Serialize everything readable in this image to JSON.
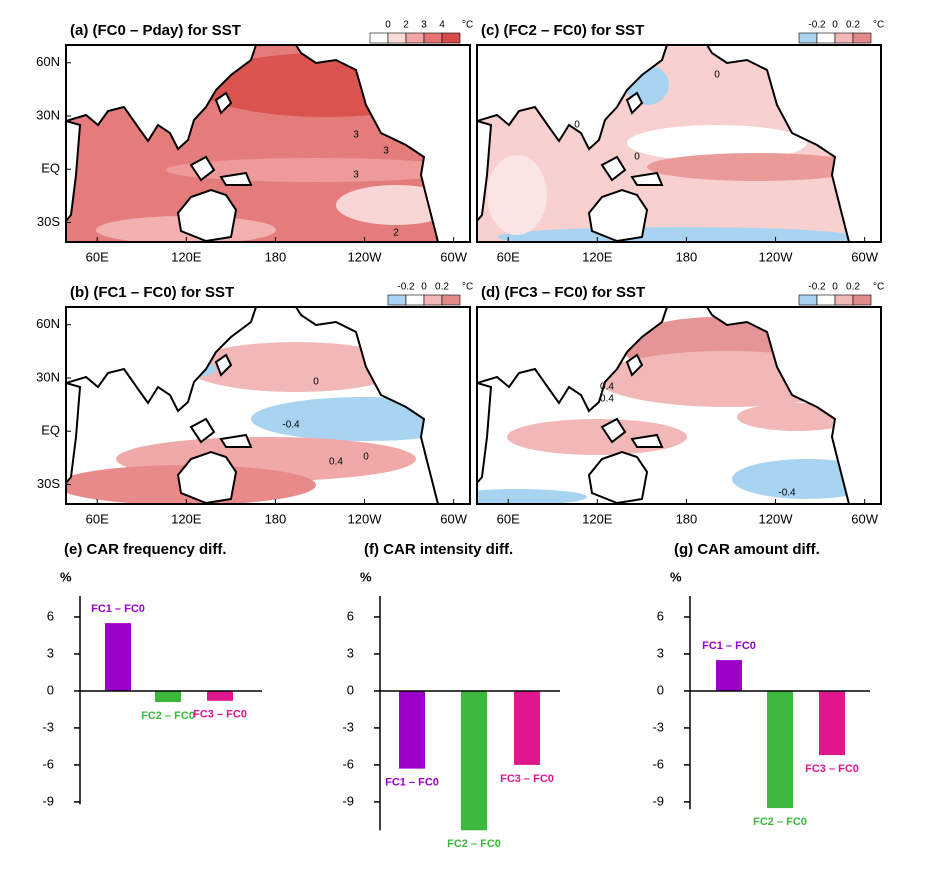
{
  "chart_data": [
    {
      "type": "map",
      "title": "(a) (FC0 – Pday) for SST",
      "xlim": [
        39,
        311
      ],
      "ylim": [
        -41,
        70
      ],
      "xticks": [
        {
          "value": 60,
          "label": "60E"
        },
        {
          "value": 120,
          "label": "120E"
        },
        180,
        {
          "value": 240,
          "label": "120W"
        },
        {
          "value": 300,
          "label": "60W"
        }
      ],
      "yticks": [
        {
          "value": 60,
          "label": "60N"
        },
        {
          "value": 30,
          "label": "30N"
        },
        {
          "value": 0,
          "label": "EQ"
        },
        {
          "value": -30,
          "label": "30S"
        }
      ],
      "colorbar": {
        "levels": [
          0,
          2,
          3,
          4
        ],
        "unit": "°C",
        "colors": [
          "#ffffff",
          "#fbdada",
          "#f2a6a6",
          "#e57373",
          "#d94a4a"
        ]
      },
      "contour_labels": [
        3,
        3,
        3,
        2
      ]
    },
    {
      "type": "map",
      "title": "(b) (FC1 – FC0) for SST",
      "xlim": [
        39,
        311
      ],
      "ylim": [
        -41,
        70
      ],
      "xticks": [
        {
          "value": 60,
          "label": "60E"
        },
        {
          "value": 120,
          "label": "120E"
        },
        180,
        {
          "value": 240,
          "label": "120W"
        },
        {
          "value": 300,
          "label": "60W"
        }
      ],
      "yticks": [
        {
          "value": 60,
          "label": "60N"
        },
        {
          "value": 30,
          "label": "30N"
        },
        {
          "value": 0,
          "label": "EQ"
        },
        {
          "value": -30,
          "label": "30S"
        }
      ],
      "colorbar": {
        "levels": [
          -0.2,
          0,
          0.2
        ],
        "unit": "°C",
        "colors": [
          "#a8d4f2",
          "#ffffff",
          "#f2b8b8",
          "#e28a8a"
        ]
      },
      "contour_labels": [
        0,
        -0.4,
        0,
        0.4
      ]
    },
    {
      "type": "map",
      "title": "(c) (FC2 – FC0) for SST",
      "xlim": [
        39,
        311
      ],
      "ylim": [
        -41,
        70
      ],
      "xticks": [
        {
          "value": 60,
          "label": "60E"
        },
        {
          "value": 120,
          "label": "120E"
        },
        180,
        {
          "value": 240,
          "label": "120W"
        },
        {
          "value": 300,
          "label": "60W"
        }
      ],
      "colorbar": {
        "levels": [
          -0.2,
          0,
          0.2
        ],
        "unit": "°C",
        "colors": [
          "#a8d4f2",
          "#ffffff",
          "#f2b8b8",
          "#e28a8a"
        ]
      },
      "contour_labels": [
        0,
        0,
        0
      ]
    },
    {
      "type": "map",
      "title": "(d) (FC3 – FC0) for SST",
      "xlim": [
        39,
        311
      ],
      "ylim": [
        -41,
        70
      ],
      "xticks": [
        {
          "value": 60,
          "label": "60E"
        },
        {
          "value": 120,
          "label": "120E"
        },
        180,
        {
          "value": 240,
          "label": "120W"
        },
        {
          "value": 300,
          "label": "60W"
        }
      ],
      "colorbar": {
        "levels": [
          -0.2,
          0,
          0.2
        ],
        "unit": "°C",
        "colors": [
          "#a8d4f2",
          "#ffffff",
          "#f2b8b8",
          "#e28a8a"
        ]
      },
      "contour_labels": [
        0.4,
        0.4,
        -0.4
      ]
    },
    {
      "type": "bar",
      "title": "(e) CAR frequency diff.",
      "y_label": "%",
      "categories": [
        "FC1 – FC0",
        "FC2 – FC0",
        "FC3 – FC0"
      ],
      "values": [
        5.5,
        -0.9,
        -0.8
      ],
      "colors": [
        "#9b00c8",
        "#3cb83c",
        "#e0178c"
      ],
      "ylim": [
        -9.2,
        7.7
      ],
      "yticks": [
        -9,
        -6,
        -3,
        0,
        3,
        6
      ]
    },
    {
      "type": "bar",
      "title": "(f) CAR intensity diff.",
      "y_label": "%",
      "categories": [
        "FC1 – FC0",
        "FC2 – FC0",
        "FC3 – FC0"
      ],
      "values": [
        -6.3,
        -11.3,
        -6.0
      ],
      "colors": [
        "#9b00c8",
        "#3cb83c",
        "#e0178c"
      ],
      "ylim": [
        -11.3,
        7.7
      ],
      "yticks": [
        -9,
        -6,
        -3,
        0,
        3,
        6
      ]
    },
    {
      "type": "bar",
      "title": "(g) CAR amount diff.",
      "y_label": "%",
      "categories": [
        "FC1 – FC0",
        "FC2 – FC0",
        "FC3 – FC0"
      ],
      "values": [
        2.5,
        -9.5,
        -5.2
      ],
      "colors": [
        "#9b00c8",
        "#3cb83c",
        "#e0178c"
      ],
      "ylim": [
        -9.6,
        7.7
      ],
      "yticks": [
        -9,
        -6,
        -3,
        0,
        3,
        6
      ]
    }
  ]
}
